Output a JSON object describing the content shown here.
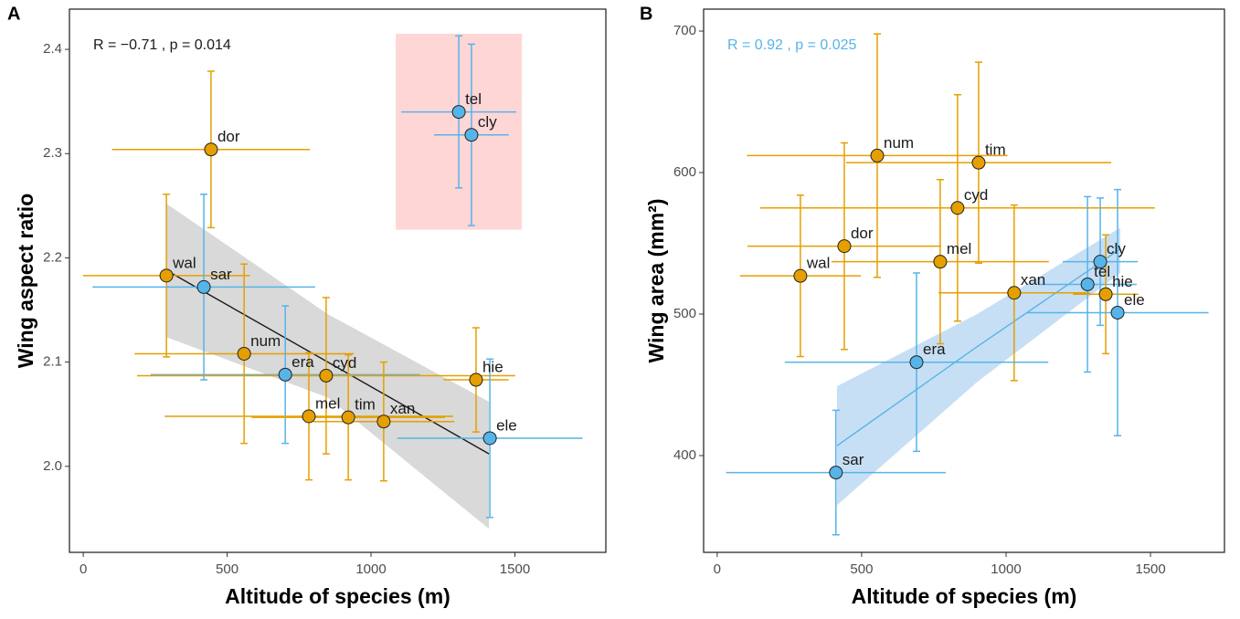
{
  "chart_data": [
    {
      "type": "scatter",
      "panel": "A",
      "xlabel": "Altitude of species (m)",
      "ylabel": "Wing aspect ratio",
      "annotation": "R = −0.71 , p = 0.014",
      "annotation_color": "#1a1a1a",
      "xlim": [
        -48,
        1816
      ],
      "ylim": [
        1.9175,
        2.4386
      ],
      "xticks": [
        0,
        500,
        1000,
        1500
      ],
      "yticks": [
        {
          "value": 2,
          "label": "2.0"
        },
        2.1,
        2.2,
        2.3,
        2.4
      ],
      "highlight": {
        "x": [
          1086,
          1524
        ],
        "y": [
          2.227,
          2.415
        ],
        "color": "#ffd6d6"
      },
      "fit": {
        "x": [
          289,
          850,
          1410
        ],
        "y": [
          2.188,
          2.1,
          2.012
        ],
        "lower": [
          2.124,
          2.066,
          1.94
        ],
        "upper": [
          2.252,
          2.146,
          2.062
        ],
        "line_color": "#1a1a1a",
        "band_color": "#d9d9d9"
      },
      "labels": [
        "tel",
        "cly",
        "dor",
        "wal",
        "sar",
        "num",
        "era",
        "cyd",
        "hie",
        "mel",
        "tim",
        "xan",
        "ele"
      ],
      "x": [
        1305,
        1349,
        444,
        289,
        419,
        559,
        702,
        844,
        1365,
        784,
        921,
        1044,
        1413
      ],
      "xerr": [
        200,
        130,
        344,
        290,
        387,
        381,
        468,
        657,
        113,
        501,
        336,
        245,
        322
      ],
      "y": [
        2.34,
        2.318,
        2.304,
        2.183,
        2.172,
        2.108,
        2.088,
        2.087,
        2.083,
        2.048,
        2.047,
        2.043,
        2.027
      ],
      "yerr": [
        0.073,
        0.087,
        0.075,
        0.078,
        0.089,
        0.086,
        0.066,
        0.075,
        0.05,
        0.061,
        0.06,
        0.057,
        0.076
      ],
      "colors": [
        "#56b4e9",
        "#56b4e9",
        "#e69f00",
        "#e69f00",
        "#56b4e9",
        "#e69f00",
        "#56b4e9",
        "#e69f00",
        "#e69f00",
        "#e69f00",
        "#e69f00",
        "#e69f00",
        "#56b4e9"
      ]
    },
    {
      "type": "scatter",
      "panel": "B",
      "xlabel": "Altitude of species (m)",
      "ylabel": "Wing area (mm²)",
      "annotation": "R = 0.92 , p = 0.025",
      "annotation_color": "#56b4e9",
      "xlim": [
        -47,
        1756
      ],
      "ylim": [
        331.6,
        715.5
      ],
      "xticks": [
        0,
        500,
        1000,
        1500
      ],
      "yticks": [
        400,
        500,
        600,
        700
      ],
      "fit": {
        "x": [
          415,
          900,
          1395
        ],
        "y": [
          407,
          477,
          546
        ],
        "lower": [
          365,
          452,
          529
        ],
        "upper": [
          449,
          500,
          561
        ],
        "line_color": "#56b4e9",
        "band_color": "#c6dff5"
      },
      "labels": [
        "num",
        "tim",
        "cyd",
        "dor",
        "mel",
        "wal",
        "xan",
        "cly",
        "tel",
        "hie",
        "ele",
        "era",
        "sar"
      ],
      "x": [
        554,
        905,
        832,
        440,
        772,
        288,
        1028,
        1326,
        1282,
        1345,
        1386,
        690,
        411
      ],
      "xerr": [
        451,
        459,
        683,
        335,
        376,
        209,
        262,
        130,
        170,
        113,
        315,
        456,
        380
      ],
      "y": [
        612,
        607,
        575,
        548,
        537,
        527,
        515,
        537,
        521,
        514,
        501,
        466,
        388
      ],
      "yerr": [
        86,
        71,
        80,
        73,
        58,
        57,
        62,
        45,
        62,
        42,
        87,
        63,
        44
      ],
      "colors": [
        "#e69f00",
        "#e69f00",
        "#e69f00",
        "#e69f00",
        "#e69f00",
        "#e69f00",
        "#e69f00",
        "#56b4e9",
        "#56b4e9",
        "#e69f00",
        "#56b4e9",
        "#56b4e9",
        "#56b4e9"
      ]
    }
  ]
}
